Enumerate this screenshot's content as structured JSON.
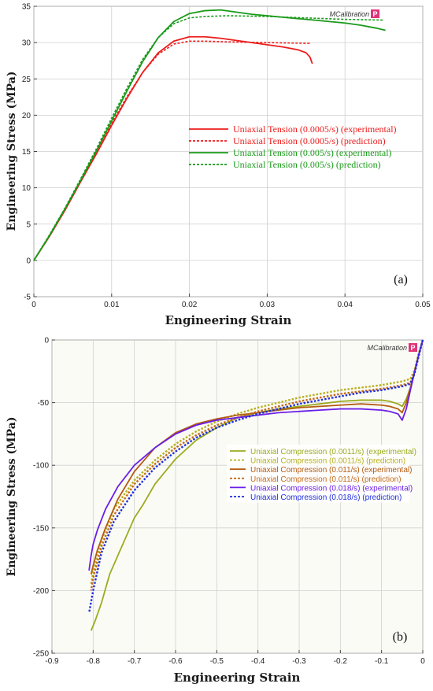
{
  "logo": {
    "text": "MCalibration",
    "mark": "P",
    "color": "#e0357a"
  },
  "chart_data": [
    {
      "type": "line",
      "panel_label": "(a)",
      "xlabel": "Engineering Strain",
      "ylabel": "Engineering Stress (MPa)",
      "xlim": [
        0,
        0.05
      ],
      "ylim": [
        -5,
        35
      ],
      "xticks": [
        0,
        0.01,
        0.02,
        0.03,
        0.04,
        0.05
      ],
      "xtick_labels": [
        "0",
        "0.01",
        "0.02",
        "0.03",
        "0.04",
        "0.05"
      ],
      "yticks": [
        -5,
        0,
        5,
        10,
        15,
        20,
        25,
        30,
        35
      ],
      "ytick_labels": [
        "-5",
        "0",
        "5",
        "10",
        "15",
        "20",
        "25",
        "30",
        "35"
      ],
      "grid": true,
      "legend": "center-right",
      "series": [
        {
          "name": "Uniaxial Tension (0.0005/s) (experimental)",
          "color": "#ee1c1c",
          "style": "solid",
          "x": [
            0,
            0.002,
            0.004,
            0.006,
            0.008,
            0.01,
            0.012,
            0.014,
            0.016,
            0.018,
            0.02,
            0.022,
            0.024,
            0.026,
            0.028,
            0.03,
            0.032,
            0.034,
            0.035,
            0.0355,
            0.0358
          ],
          "y": [
            0,
            3.3,
            6.9,
            10.8,
            14.6,
            18.6,
            22.4,
            25.9,
            28.6,
            30.2,
            30.8,
            30.8,
            30.6,
            30.3,
            30.0,
            29.7,
            29.4,
            29.0,
            28.6,
            28.0,
            27.1
          ]
        },
        {
          "name": "Uniaxial Tension (0.0005/s) (prediction)",
          "color": "#ee1c1c",
          "style": "dashed",
          "x": [
            0,
            0.002,
            0.004,
            0.006,
            0.008,
            0.01,
            0.012,
            0.014,
            0.016,
            0.018,
            0.02,
            0.022,
            0.025,
            0.03,
            0.0355
          ],
          "y": [
            0,
            3.4,
            7.0,
            10.9,
            14.9,
            18.9,
            22.6,
            25.9,
            28.4,
            29.8,
            30.2,
            30.2,
            30.1,
            30.0,
            29.9
          ]
        },
        {
          "name": "Uniaxial Tension (0.005/s) (experimental)",
          "color": "#1a9a1a",
          "style": "solid",
          "x": [
            0,
            0.002,
            0.004,
            0.006,
            0.008,
            0.01,
            0.012,
            0.014,
            0.016,
            0.018,
            0.02,
            0.022,
            0.024,
            0.026,
            0.028,
            0.03,
            0.032,
            0.034,
            0.036,
            0.038,
            0.04,
            0.042,
            0.044,
            0.0452
          ],
          "y": [
            0,
            3.4,
            7.1,
            11.0,
            15.0,
            19.2,
            23.4,
            27.4,
            30.7,
            32.9,
            34.0,
            34.4,
            34.5,
            34.2,
            33.9,
            33.7,
            33.5,
            33.3,
            33.1,
            32.9,
            32.7,
            32.4,
            32.0,
            31.7
          ]
        },
        {
          "name": "Uniaxial Tension (0.005/s) (prediction)",
          "color": "#1a9a1a",
          "style": "dashed",
          "x": [
            0,
            0.002,
            0.004,
            0.006,
            0.008,
            0.01,
            0.012,
            0.014,
            0.016,
            0.018,
            0.02,
            0.022,
            0.025,
            0.03,
            0.035,
            0.04,
            0.045
          ],
          "y": [
            0,
            3.5,
            7.2,
            11.2,
            15.3,
            19.6,
            23.8,
            27.7,
            30.7,
            32.6,
            33.4,
            33.6,
            33.7,
            33.6,
            33.4,
            33.2,
            33.1
          ]
        }
      ]
    },
    {
      "type": "line",
      "panel_label": "(b)",
      "xlabel": "Engineering Strain",
      "ylabel": "Engineering Stress (MPa)",
      "xlim": [
        -0.9,
        0
      ],
      "ylim": [
        -250,
        0
      ],
      "xticks": [
        -0.9,
        -0.8,
        -0.7,
        -0.6,
        -0.5,
        -0.4,
        -0.3,
        -0.2,
        -0.1,
        0
      ],
      "xtick_labels": [
        "-0.9",
        "-0.8",
        "-0.7",
        "-0.6",
        "-0.5",
        "-0.4",
        "-0.3",
        "-0.2",
        "-0.1",
        "0"
      ],
      "yticks": [
        -250,
        -200,
        -150,
        -100,
        -50,
        0
      ],
      "ytick_labels": [
        "-250",
        "-200",
        "-150",
        "-100",
        "-50",
        "0"
      ],
      "grid": true,
      "legend": "center-right",
      "series": [
        {
          "name": "Uniaxial Compression (0.0011/s) (experimental)",
          "color": "#9aab1e",
          "style": "solid",
          "x": [
            0,
            -0.01,
            -0.02,
            -0.03,
            -0.04,
            -0.05,
            -0.06,
            -0.08,
            -0.1,
            -0.15,
            -0.2,
            -0.25,
            -0.3,
            -0.35,
            -0.4,
            -0.45,
            -0.5,
            -0.55,
            -0.6,
            -0.65,
            -0.68,
            -0.7,
            -0.72,
            -0.74,
            -0.76,
            -0.78,
            -0.795,
            -0.805
          ],
          "y": [
            0,
            -12,
            -25,
            -38,
            -47,
            -53,
            -51,
            -49,
            -48,
            -48,
            -49,
            -51,
            -53,
            -55,
            -58,
            -62,
            -70,
            -80,
            -95,
            -115,
            -132,
            -142,
            -157,
            -172,
            -187,
            -210,
            -224,
            -232
          ]
        },
        {
          "name": "Uniaxial Compression (0.0011/s) (prediction)",
          "color": "#b7b01e",
          "style": "dashed",
          "x": [
            0,
            -0.01,
            -0.02,
            -0.03,
            -0.05,
            -0.1,
            -0.15,
            -0.2,
            -0.25,
            -0.3,
            -0.35,
            -0.4,
            -0.45,
            -0.5,
            -0.55,
            -0.6,
            -0.65,
            -0.7,
            -0.75,
            -0.78,
            -0.8,
            -0.805
          ],
          "y": [
            0,
            -11,
            -24,
            -31,
            -33,
            -36,
            -38,
            -40,
            -43,
            -46,
            -50,
            -54,
            -59,
            -65,
            -73,
            -83,
            -96,
            -112,
            -135,
            -160,
            -185,
            -195
          ]
        },
        {
          "name": "Uniaxial Compression (0.011/s) (experimental)",
          "color": "#b35a12",
          "style": "solid",
          "x": [
            0,
            -0.01,
            -0.02,
            -0.03,
            -0.04,
            -0.05,
            -0.06,
            -0.08,
            -0.1,
            -0.15,
            -0.2,
            -0.25,
            -0.3,
            -0.35,
            -0.4,
            -0.45,
            -0.5,
            -0.55,
            -0.6,
            -0.65,
            -0.7,
            -0.74,
            -0.77,
            -0.79,
            -0.8,
            -0.805
          ],
          "y": [
            0,
            -12,
            -25,
            -38,
            -50,
            -58,
            -55,
            -53,
            -52,
            -51,
            -52,
            -53,
            -54,
            -56,
            -58,
            -60,
            -63,
            -67,
            -74,
            -86,
            -105,
            -127,
            -150,
            -168,
            -180,
            -187
          ]
        },
        {
          "name": "Uniaxial Compression (0.011/s) (prediction)",
          "color": "#c46a1a",
          "style": "dashed",
          "x": [
            0,
            -0.01,
            -0.02,
            -0.03,
            -0.05,
            -0.1,
            -0.15,
            -0.2,
            -0.25,
            -0.3,
            -0.35,
            -0.4,
            -0.45,
            -0.5,
            -0.55,
            -0.6,
            -0.65,
            -0.7,
            -0.75,
            -0.78,
            -0.8,
            -0.805
          ],
          "y": [
            0,
            -12,
            -26,
            -34,
            -36,
            -39,
            -41,
            -43,
            -46,
            -49,
            -53,
            -57,
            -62,
            -68,
            -76,
            -86,
            -99,
            -115,
            -140,
            -165,
            -190,
            -200
          ]
        },
        {
          "name": "Uniaxial Compression (0.018/s) (experimental)",
          "color": "#6a1ee8",
          "style": "solid",
          "x": [
            0,
            -0.01,
            -0.02,
            -0.03,
            -0.04,
            -0.05,
            -0.06,
            -0.08,
            -0.1,
            -0.15,
            -0.2,
            -0.25,
            -0.3,
            -0.35,
            -0.4,
            -0.45,
            -0.5,
            -0.55,
            -0.6,
            -0.65,
            -0.7,
            -0.74,
            -0.77,
            -0.79,
            -0.8,
            -0.805,
            -0.81
          ],
          "y": [
            0,
            -12,
            -26,
            -40,
            -55,
            -64,
            -59,
            -57,
            -56,
            -55,
            -55,
            -56,
            -57,
            -58,
            -60,
            -62,
            -64,
            -68,
            -75,
            -86,
            -100,
            -117,
            -135,
            -152,
            -163,
            -172,
            -184
          ]
        },
        {
          "name": "Uniaxial Compression (0.018/s) (prediction)",
          "color": "#2030dd",
          "style": "dashed",
          "x": [
            0,
            -0.01,
            -0.02,
            -0.03,
            -0.05,
            -0.1,
            -0.15,
            -0.2,
            -0.25,
            -0.3,
            -0.35,
            -0.4,
            -0.45,
            -0.5,
            -0.55,
            -0.6,
            -0.65,
            -0.7,
            -0.75,
            -0.78,
            -0.8,
            -0.81
          ],
          "y": [
            0,
            -13,
            -27,
            -35,
            -37,
            -40,
            -42,
            -45,
            -48,
            -51,
            -55,
            -59,
            -64,
            -70,
            -78,
            -89,
            -102,
            -120,
            -145,
            -170,
            -200,
            -218
          ]
        }
      ]
    }
  ]
}
